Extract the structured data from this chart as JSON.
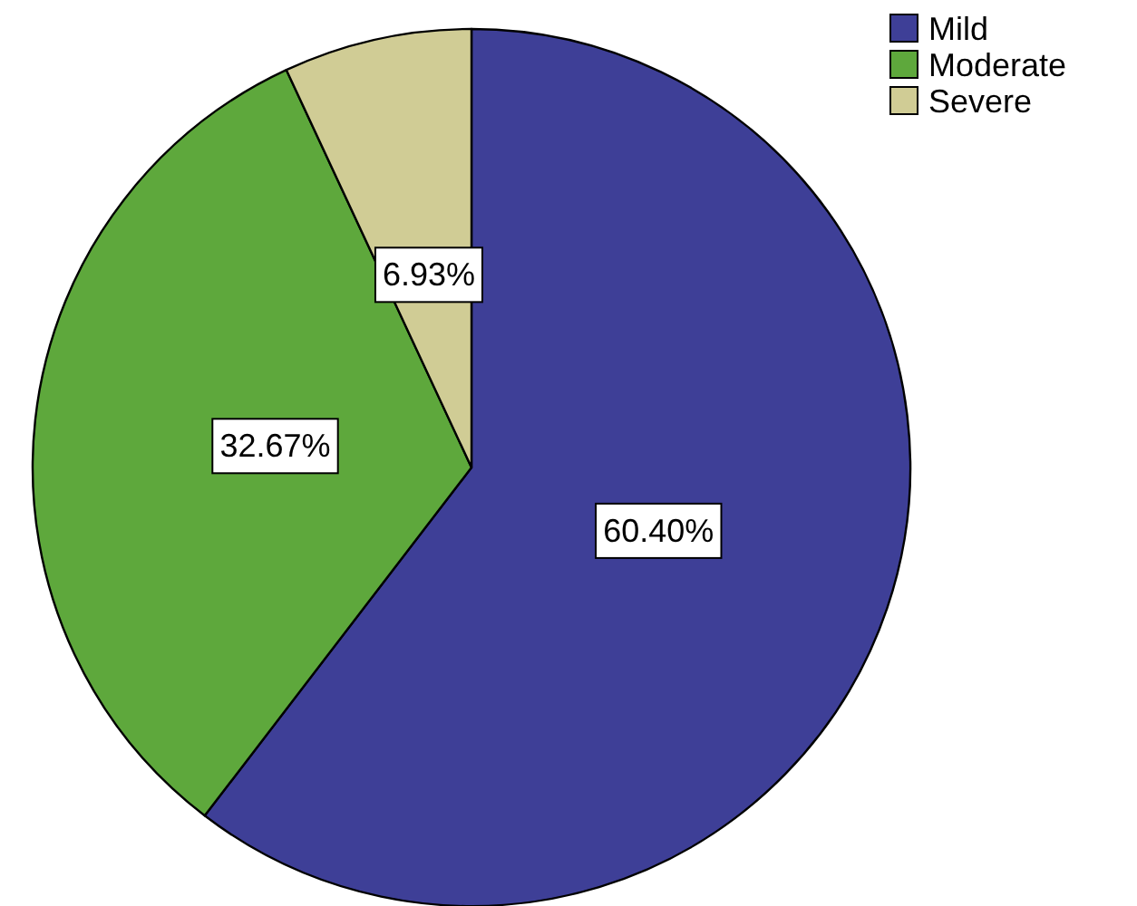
{
  "chart_data": {
    "type": "pie",
    "categories": [
      "Mild",
      "Moderate",
      "Severe"
    ],
    "values": [
      60.4,
      32.67,
      6.93
    ],
    "colors": [
      "#3e3f97",
      "#5ea83c",
      "#d0cc95"
    ],
    "value_labels": [
      "60.40%",
      "32.67%",
      "6.93%"
    ],
    "legend": "top right"
  }
}
